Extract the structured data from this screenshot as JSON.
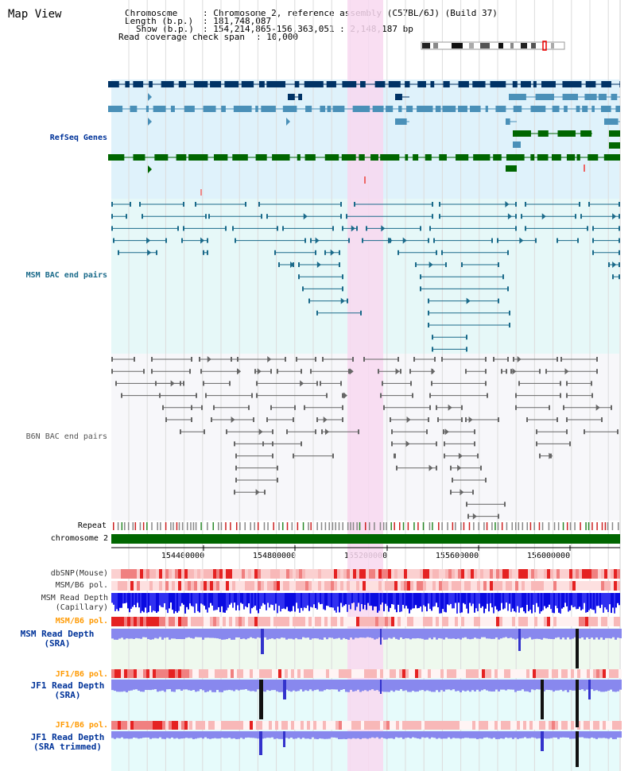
{
  "page": {
    "title": "Map View"
  },
  "header": {
    "chromosome_label": "Chromosome",
    "chromosome_value": ": Chromosome 2, reference assembly (C57BL/6J) (Build 37)",
    "length_label": "Length (b.p.)",
    "length_value": ": 181,748,087",
    "show_label": "Show (b.p.)",
    "show_value": ": 154,214,865-156,363,051 : 2,148,187 bp",
    "coverage_label": "Read coverage check span",
    "coverage_value": ": 10,000"
  },
  "tracks": {
    "refseq": "RefSeq Genes",
    "msm_bac": "MSM BAC end pairs",
    "b6n_bac": "B6N BAC end pairs",
    "repeat": "Repeat",
    "chromosome": "chromosome 2",
    "dbsnp": "dbSNP(Mouse)",
    "msm_b6_pol_1": "MSM/B6 pol.",
    "msm_read_depth_cap_1": "MSM Read Depth",
    "msm_read_depth_cap_2": "(Capillary)",
    "msm_b6_pol_2": "MSM/B6 pol.",
    "msm_read_depth_sra_1": "MSM Read Depth",
    "msm_read_depth_sra_2": "(SRA)",
    "jf1_b6_pol_1": "JF1/B6 pol.",
    "jf1_read_depth_sra_1": "JF1 Read Depth",
    "jf1_read_depth_sra_2": "(SRA)",
    "jf1_b6_pol_2": "JF1/B6 pol.",
    "jf1_read_depth_trim_1": "JF1 Read Depth",
    "jf1_read_depth_trim_2": "(SRA trimmed)"
  },
  "axis": {
    "ticks": [
      "154400000",
      "154800000",
      "155200000",
      "155600000",
      "156000000"
    ]
  },
  "colors": {
    "refseq_dark": "#003366",
    "refseq_mid": "#4a90b8",
    "refseq_green": "#006600",
    "msm_bac": "#1a6a8a",
    "b6n_bac": "#666666",
    "highlight": "#f8d8f0",
    "track_label_blue": "#003399",
    "track_label_orange": "#ff9900",
    "depth_blue": "#0000ee",
    "depth_lavender": "#8888ee"
  }
}
